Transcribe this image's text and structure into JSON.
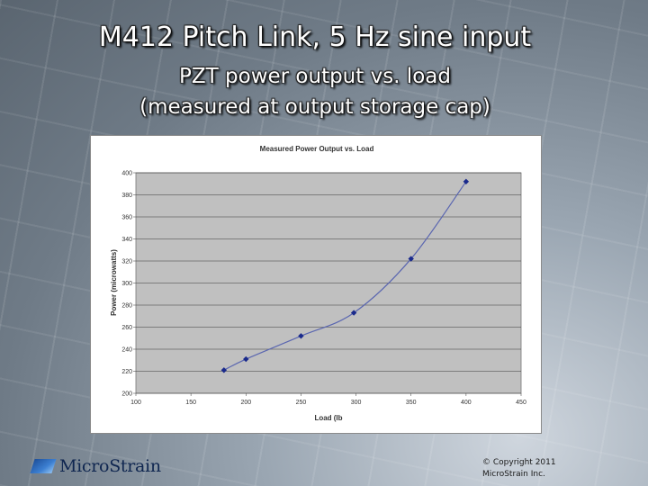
{
  "slide": {
    "title": "M412 Pitch Link, 5 Hz sine input",
    "subtitle_line1": "PZT power output vs. load",
    "subtitle_line2": "(measured at output storage cap)"
  },
  "footer": {
    "logo_text": "MicroStrain",
    "copyright_line1": "© Copyright 2011",
    "copyright_line2": "MicroStrain Inc."
  },
  "colors": {
    "plot_background": "#c0c0c0",
    "series_line": "#5a66b0",
    "series_marker": "#1a2a8c"
  },
  "chart_data": {
    "type": "line",
    "title": "Measured Power Output vs. Load",
    "xlabel": "Load (lb",
    "ylabel": "Power (microwatts)",
    "xlim": [
      100,
      450
    ],
    "ylim": [
      200,
      400
    ],
    "xticks": [
      "100",
      "150",
      "200",
      "250",
      "300",
      "350",
      "400",
      "450"
    ],
    "yticks": [
      "200",
      "220",
      "240",
      "260",
      "280",
      "300",
      "320",
      "340",
      "360",
      "380",
      "400"
    ],
    "grid": true,
    "legend": "none",
    "series": [
      {
        "x": [
          180,
          200,
          250,
          298,
          350,
          400
        ],
        "values": [
          221,
          231,
          252,
          273,
          322,
          392
        ]
      }
    ]
  }
}
